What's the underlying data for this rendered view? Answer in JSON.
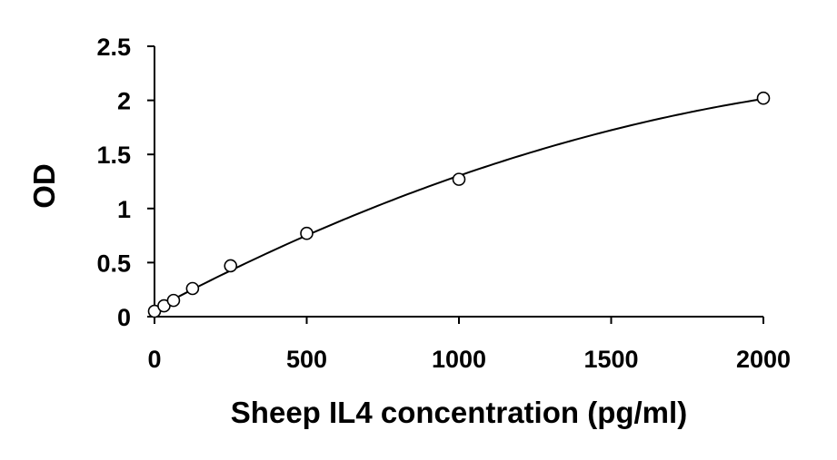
{
  "chart_data": {
    "type": "scatter",
    "title": "",
    "xlabel": "Sheep IL4 concentration (pg/ml)",
    "ylabel": "OD",
    "xlim": [
      0,
      2000
    ],
    "ylim": [
      0,
      2.5
    ],
    "x_ticks": [
      "0",
      "500",
      "1000",
      "1500",
      "2000"
    ],
    "y_ticks": [
      "0",
      "0.5",
      "1",
      "1.5",
      "2",
      "2.5"
    ],
    "grid": false,
    "legend": "none",
    "series": [
      {
        "marker": "open-circle",
        "points": [
          {
            "x": 0,
            "y": 0.05
          },
          {
            "x": 31.25,
            "y": 0.1
          },
          {
            "x": 62.5,
            "y": 0.15
          },
          {
            "x": 125,
            "y": 0.26
          },
          {
            "x": 250,
            "y": 0.47
          },
          {
            "x": 500,
            "y": 0.77
          },
          {
            "x": 1000,
            "y": 1.27
          },
          {
            "x": 2000,
            "y": 2.02
          }
        ],
        "fit": "polynomial"
      }
    ]
  }
}
